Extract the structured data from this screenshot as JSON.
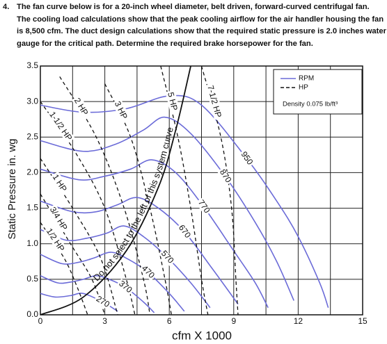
{
  "question": {
    "number": "4.",
    "lines": [
      "The fan curve below is for a 20-inch wheel diameter, belt driven, forward-curved centrifugal fan.",
      "The cooling load calculations show that the peak cooling airflow for the air handler housing the fan",
      "is 8,500 cfm.  The duct design calculations show that the required static pressure is 2.0 inches water",
      "gauge for the critical path.  Determine the required brake horsepower for the fan."
    ]
  },
  "chart_data": {
    "type": "line",
    "x_label": "cfm X 1000",
    "y_label": "Static Pressure in. wg",
    "xlim": [
      0,
      15
    ],
    "ylim": [
      0,
      3.5
    ],
    "xticks": [
      0,
      3,
      6,
      9,
      12,
      15
    ],
    "x_minor_grid": [
      1.5,
      4.5,
      7.5,
      10.5,
      13.5
    ],
    "yticks": [
      {
        "value": 0,
        "label": "0.0"
      },
      {
        "value": 0.5,
        "label": "0.5"
      },
      {
        "value": 1,
        "label": "1.0"
      },
      {
        "value": 1.5,
        "label": "1.5"
      },
      {
        "value": 2,
        "label": "2.0"
      },
      {
        "value": 2.5,
        "label": "2.5"
      },
      {
        "value": 3,
        "label": "3.0"
      },
      {
        "value": 3.5,
        "label": "3.5"
      }
    ],
    "grid": true,
    "legend": {
      "items": [
        {
          "label": "RPM",
          "color": "#6b6bd8",
          "dashed": false
        },
        {
          "label": "HP",
          "color": "#111111",
          "dashed": true
        }
      ],
      "note": "Density 0.075 lb/ft³",
      "position": "top-right"
    },
    "rpm_curves": [
      {
        "name": "950",
        "color": "#6b6bd8",
        "x": [
          0,
          2,
          4,
          6,
          7.5,
          9.6,
          11,
          12,
          13,
          13.4
        ],
        "values": [
          2.95,
          2.85,
          2.9,
          3.08,
          2.95,
          2.2,
          1.6,
          1.1,
          0.45,
          0.1
        ]
      },
      {
        "name": "870",
        "color": "#6b6bd8",
        "x": [
          0,
          2,
          3.5,
          4.8,
          5.8,
          7,
          8.6,
          10,
          11,
          11.8
        ],
        "values": [
          2.45,
          2.3,
          2.4,
          2.6,
          2.78,
          2.55,
          1.95,
          1.3,
          0.75,
          0.2
        ]
      },
      {
        "name": "770",
        "color": "#6b6bd8",
        "x": [
          0,
          1.8,
          3,
          4.2,
          5.2,
          6.3,
          7.6,
          9,
          10,
          10.6
        ],
        "values": [
          2.05,
          1.9,
          1.95,
          2.05,
          2.18,
          2.0,
          1.52,
          0.9,
          0.45,
          0.1
        ]
      },
      {
        "name": "670",
        "color": "#6b6bd8",
        "x": [
          0,
          1.5,
          2.6,
          3.6,
          4.5,
          5.5,
          6.7,
          8,
          9.2
        ],
        "values": [
          1.6,
          1.45,
          1.45,
          1.55,
          1.65,
          1.5,
          1.17,
          0.65,
          0.15
        ]
      },
      {
        "name": "570",
        "color": "#6b6bd8",
        "x": [
          0,
          1.2,
          2.2,
          3.1,
          3.9,
          4.8,
          5.9,
          7,
          7.9
        ],
        "values": [
          1.2,
          1.05,
          1.08,
          1.15,
          1.25,
          1.1,
          0.81,
          0.45,
          0.1
        ]
      },
      {
        "name": "470",
        "color": "#6b6bd8",
        "x": [
          0,
          1,
          1.8,
          2.5,
          3.3,
          4.1,
          5,
          6,
          6.7
        ],
        "values": [
          0.85,
          0.72,
          0.74,
          0.8,
          0.88,
          0.78,
          0.6,
          0.3,
          0.05
        ]
      },
      {
        "name": "370",
        "color": "#6b6bd8",
        "x": [
          0,
          0.8,
          1.4,
          2,
          2.6,
          3.2,
          3.95,
          4.8,
          5.3
        ],
        "values": [
          0.55,
          0.45,
          0.46,
          0.5,
          0.55,
          0.5,
          0.39,
          0.18,
          0.03
        ]
      },
      {
        "name": "270",
        "color": "#6b6bd8",
        "x": [
          0,
          0.7,
          1.4,
          2,
          2.9,
          3.6
        ],
        "values": [
          0.3,
          0.25,
          0.27,
          0.3,
          0.18,
          0.05
        ]
      }
    ],
    "hp_curves": [
      {
        "name": "7-1/2 HP",
        "color": "#111111",
        "x": [
          7.5,
          8.4,
          8.9,
          9.1,
          9.2
        ],
        "values": [
          3.5,
          2.5,
          1.5,
          0.5,
          0
        ]
      },
      {
        "name": "5 HP",
        "color": "#111111",
        "x": [
          5.6,
          6.4,
          7.0,
          7.5,
          7.8
        ],
        "values": [
          3.5,
          2.5,
          1.5,
          0.5,
          0
        ]
      },
      {
        "name": "3 HP",
        "color": "#111111",
        "x": [
          3,
          4.2,
          5.1,
          5.8,
          6.1
        ],
        "values": [
          3.25,
          2.5,
          1.5,
          0.5,
          0
        ]
      },
      {
        "name": "2 HP",
        "color": "#111111",
        "x": [
          0.9,
          2.6,
          3.9,
          4.8,
          5.1
        ],
        "values": [
          3.35,
          2.5,
          1.5,
          0.5,
          0
        ]
      },
      {
        "name": "1-1/2 HP",
        "color": "#111111",
        "x": [
          0,
          1.6,
          3.0,
          4.0,
          4.4
        ],
        "values": [
          3.0,
          2.3,
          1.5,
          0.5,
          0
        ]
      },
      {
        "name": "1 HP",
        "color": "#111111",
        "x": [
          0,
          1.5,
          2.8,
          3.6
        ],
        "values": [
          2.2,
          1.5,
          0.8,
          0
        ]
      },
      {
        "name": "3/4 HP",
        "color": "#111111",
        "x": [
          0,
          1.4,
          2.4,
          3.0
        ],
        "values": [
          1.7,
          1.0,
          0.5,
          0
        ]
      },
      {
        "name": "1/2 HP",
        "color": "#111111",
        "x": [
          0,
          1.1,
          1.7,
          2.2
        ],
        "values": [
          1.3,
          0.8,
          0.4,
          0
        ]
      }
    ],
    "system_curve": {
      "label": "Do not select to the left of this system curve",
      "color": "#111111",
      "x": [
        0,
        2,
        4,
        5.5,
        6.3,
        7
      ],
      "values": [
        0,
        0.25,
        0.9,
        1.8,
        2.6,
        3.5
      ]
    }
  }
}
